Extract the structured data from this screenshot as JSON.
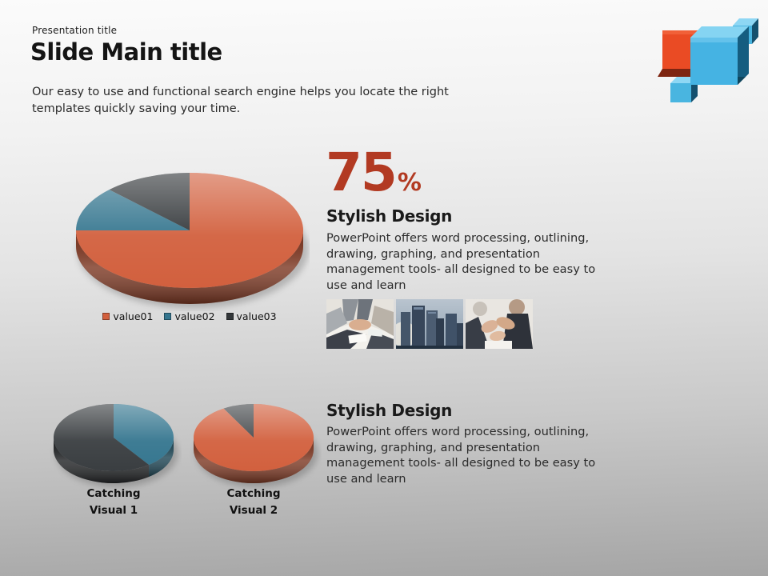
{
  "slide": {
    "eyebrow": "Presentation title",
    "title": "Slide Main title",
    "intro": "Our easy to use and functional search engine helps you locate the right\ntemplates quickly saving your time.",
    "accent_color": "#b23a22",
    "background_top": "#fbfbfb",
    "background_bottom": "#a5a5a5"
  },
  "stat": {
    "value": "75",
    "unit": "%"
  },
  "sections": [
    {
      "heading": "Stylish Design",
      "body": "PowerPoint offers word processing, outlining,\ndrawing, graphing, and presentation\nmanagement tools- all designed to be easy to\nuse and learn"
    },
    {
      "heading": "Stylish Design",
      "body": "PowerPoint offers word processing, outlining,\ndrawing, graphing, and presentation\nmanagement tools- all designed to be easy to\nuse and learn"
    }
  ],
  "logo": {
    "colors": {
      "orange": "#e84b22",
      "blue_front": "#45b3e3",
      "blue_top": "#85d4f2",
      "blue_dark": "#155d80"
    }
  },
  "chart_data": [
    {
      "type": "pie",
      "name": "main-pie",
      "legend": [
        "value01",
        "value02",
        "value03"
      ],
      "values": [
        75,
        12.5,
        12.5
      ],
      "colors": [
        "#d2603e",
        "#35768f",
        "#33373a"
      ],
      "legend_position": "bottom",
      "start_angle": 0
    },
    {
      "type": "pie",
      "name": "catching-visual-1",
      "caption": [
        "Catching",
        "Visual 1"
      ],
      "legend": [
        "value02",
        "value03"
      ],
      "values": [
        40,
        60
      ],
      "colors": [
        "#35768f",
        "#3a3e41"
      ],
      "start_angle": 0
    },
    {
      "type": "pie",
      "name": "catching-visual-2",
      "caption": [
        "Catching",
        "Visual 2"
      ],
      "legend": [
        "value01",
        "value03"
      ],
      "values": [
        91.7,
        8.3
      ],
      "colors": [
        "#d2603e",
        "#44484b"
      ],
      "start_angle": 0
    }
  ]
}
